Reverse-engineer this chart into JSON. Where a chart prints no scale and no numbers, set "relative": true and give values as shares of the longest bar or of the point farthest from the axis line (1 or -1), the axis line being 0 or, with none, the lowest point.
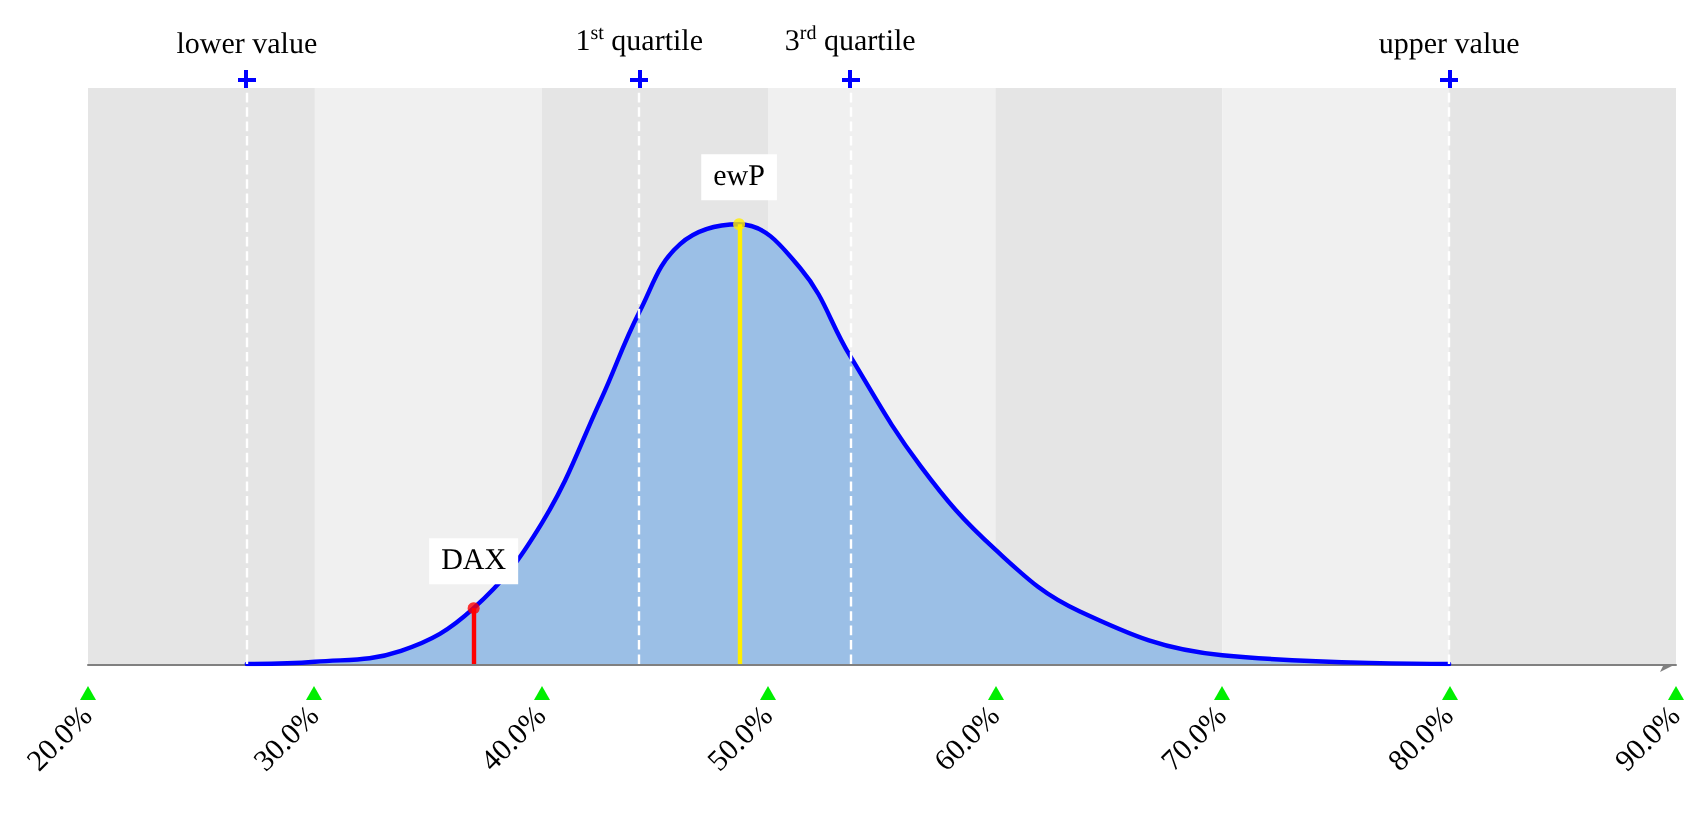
{
  "chart_data": {
    "type": "area",
    "relative": true,
    "x": [
      27,
      30,
      33.8,
      37,
      40,
      42.6,
      44.3,
      46.1,
      48.7,
      51.4,
      53.6,
      56.7,
      60,
      63.7,
      70,
      80
    ],
    "series": [
      {
        "color": "#0000ff",
        "values": [
          0,
          0.005,
          0.03,
          0.127,
          0.32,
          0.6,
          0.8,
          0.955,
          1,
          0.9,
          0.7,
          0.45,
          0.26,
          0.12,
          0.02,
          0
        ]
      },
      {
        "type": "lollipop",
        "x": [
          37,
          48.7
        ],
        "colors": [
          "#ff0000",
          "#ffee00"
        ],
        "values": [
          0.127,
          1
        ]
      }
    ],
    "xlim": [
      20,
      90
    ],
    "xticks": [
      {
        "value": 20,
        "label": "20.0%"
      },
      {
        "value": 30,
        "label": "30.0%"
      },
      {
        "value": 40,
        "label": "40.0%"
      },
      {
        "value": 50,
        "label": "50.0%"
      },
      {
        "value": 60,
        "label": "60.0%"
      },
      {
        "value": 70,
        "label": "70.0%"
      },
      {
        "value": 80,
        "label": "80.0%"
      },
      {
        "value": 90,
        "label": "90.0%"
      }
    ],
    "ref_lines": [
      {
        "axis": "x",
        "value": 27,
        "label": "lower value",
        "color": "#ffffff",
        "line_style": "dashed"
      },
      {
        "axis": "x",
        "value": 44.3,
        "label": "1$^{st}$ quartile",
        "color": "#ffffff",
        "line_style": "dashed"
      },
      {
        "axis": "x",
        "value": 53.6,
        "label": "3$^{rd}$ quartile",
        "color": "#ffffff",
        "line_style": "dashed"
      },
      {
        "axis": "x",
        "value": 80,
        "label": "upper value",
        "color": "#ffffff",
        "line_style": "dashed"
      }
    ],
    "bands": [
      {
        "axis": "x",
        "from": 20,
        "to": 30,
        "color": "#e5e5e5"
      },
      {
        "axis": "x",
        "from": 30,
        "to": 40,
        "color": "#f0f0f0"
      },
      {
        "axis": "x",
        "from": 40,
        "to": 50,
        "color": "#e5e5e5"
      },
      {
        "axis": "x",
        "from": 50,
        "to": 60,
        "color": "#f0f0f0"
      },
      {
        "axis": "x",
        "from": 60,
        "to": 70,
        "color": "#e5e5e5"
      },
      {
        "axis": "x",
        "from": 70,
        "to": 80,
        "color": "#f0f0f0"
      },
      {
        "axis": "x",
        "from": 80,
        "to": 90,
        "color": "#e5e5e5"
      }
    ],
    "annotations": [
      {
        "text": "DAX",
        "x": 37,
        "y": 0.127
      },
      {
        "text": "ewP",
        "x": 48.7,
        "y": 1
      }
    ],
    "grid": false,
    "line_style": "solid"
  }
}
